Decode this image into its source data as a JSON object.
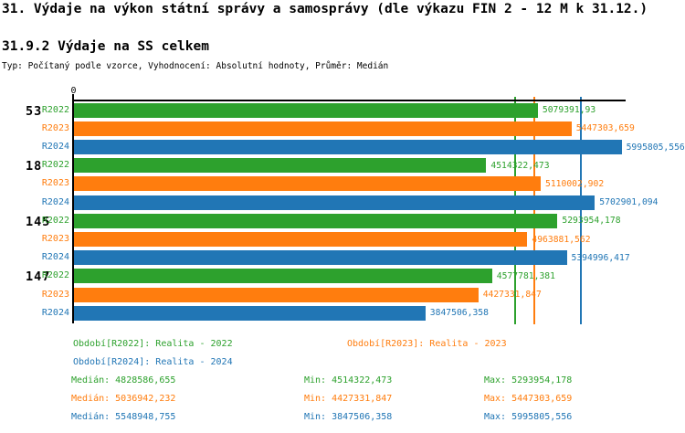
{
  "header": {
    "title": "31. Výdaje na výkon státní správy a samosprávy (dle výkazu FIN 2 - 12 M k 31.12.)",
    "subtitle": "31.9.2 Výdaje na SS celkem",
    "meta": "Typ: Počítaný podle vzorce, Vyhodnocení: Absolutní hodnoty, Průměr: Medián"
  },
  "colors": {
    "r2022": "#2da12d",
    "r2023": "#ff7d0e",
    "r2024": "#2176b5",
    "axis": "#000000"
  },
  "chart_data": {
    "type": "bar",
    "orientation": "horizontal",
    "axis_origin_label": "0",
    "xlim": [
      0,
      6040000
    ],
    "grid": false,
    "categories": [
      "53",
      "18",
      "145",
      "147"
    ],
    "series": [
      {
        "name": "R2022",
        "color": "#2da12d",
        "values": [
          5079391.93,
          4514322.473,
          5293954.178,
          4577781.381
        ],
        "value_labels": [
          "5079391,93",
          "4514322,473",
          "5293954,178",
          "4577781,381"
        ],
        "median": 4828586.655
      },
      {
        "name": "R2023",
        "color": "#ff7d0e",
        "values": [
          5447303.659,
          5110002.902,
          4963881.562,
          4427331.847
        ],
        "value_labels": [
          "5447303,659",
          "5110002,902",
          "4963881,562",
          "4427331,847"
        ],
        "median": 5036942.232
      },
      {
        "name": "R2024",
        "color": "#2176b5",
        "values": [
          5995805.556,
          5702901.094,
          5394996.417,
          3847506.358
        ],
        "value_labels": [
          "5995805,556",
          "5702901,094",
          "5394996,417",
          "3847506,358"
        ],
        "median": 5548948.755
      }
    ],
    "median_lines": [
      4828586.655,
      5036942.232,
      5548948.755
    ]
  },
  "legend": {
    "items": [
      {
        "label": "Období[R2022]: Realita - 2022",
        "color": "#2da12d"
      },
      {
        "label": "Období[R2023]: Realita - 2023",
        "color": "#ff7d0e"
      },
      {
        "label": "Období[R2024]: Realita - 2024",
        "color": "#2176b5"
      }
    ]
  },
  "stats": {
    "rows": [
      {
        "series": "R2022",
        "color": "#2da12d",
        "median": "Medián: 4828586,655",
        "min": "Min: 4514322,473",
        "max": "Max: 5293954,178"
      },
      {
        "series": "R2023",
        "color": "#ff7d0e",
        "median": "Medián: 5036942,232",
        "min": "Min: 4427331,847",
        "max": "Max: 5447303,659"
      },
      {
        "series": "R2024",
        "color": "#2176b5",
        "median": "Medián: 5548948,755",
        "min": "Min: 3847506,358",
        "max": "Max: 5995805,556"
      }
    ]
  }
}
